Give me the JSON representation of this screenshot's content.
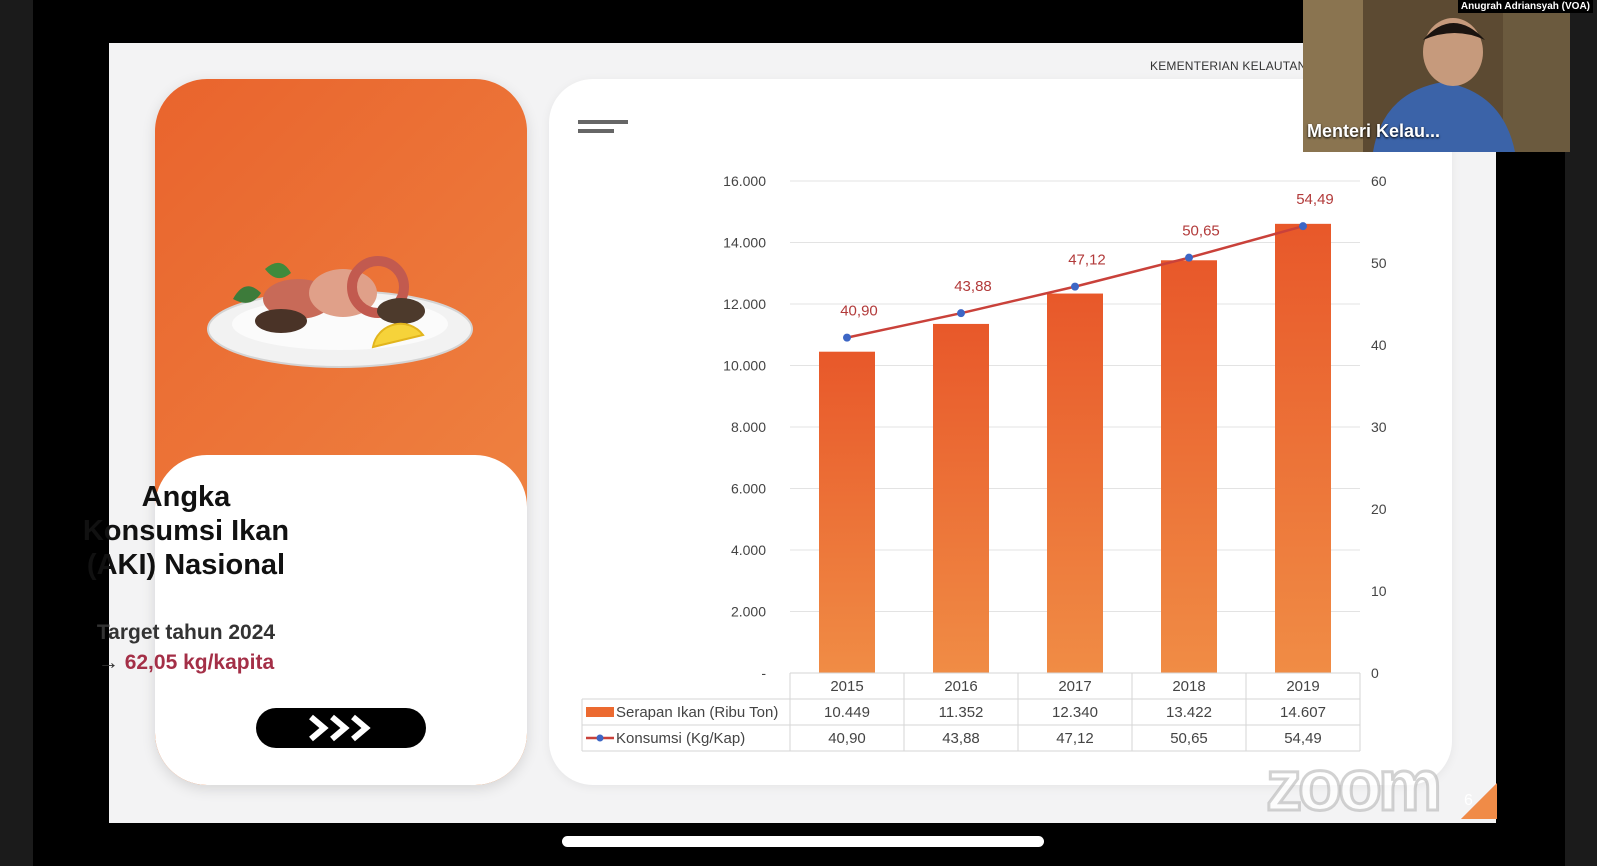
{
  "window": {
    "org_label": "KEMENTERIAN KELAUTAN",
    "credit": "Anugrah Adriansyah (VOA)",
    "participant_name": "Menteri Kelau...",
    "zoom_watermark": "zoom",
    "page_number": "6"
  },
  "left_card": {
    "title_lines": [
      "Angka",
      "Konsumsi Ikan",
      "(AKI) Nasional"
    ],
    "target_label": "Target tahun 2024",
    "target_arrow": "→",
    "target_value": "62,05 kg/kapita",
    "next_icon": "triple-chevron-icon"
  },
  "chart_data": {
    "type": "bar",
    "categories": [
      "2015",
      "2016",
      "2017",
      "2018",
      "2019"
    ],
    "series": [
      {
        "name": "Serapan Ikan (Ribu Ton)",
        "type": "bar",
        "axis": "left",
        "values": [
          10449,
          11352,
          12340,
          13422,
          14607
        ],
        "table_values": [
          "10.449",
          "11.352",
          "12.340",
          "13.422",
          "14.607"
        ],
        "color": "#ec6a30"
      },
      {
        "name": "Konsumsi (Kg/Kap)",
        "type": "line",
        "axis": "right",
        "values": [
          40.9,
          43.88,
          47.12,
          50.65,
          54.49
        ],
        "labels": [
          "40,90",
          "43,88",
          "47,12",
          "50,65",
          "54,49"
        ],
        "line_color": "#c9413a",
        "marker_color": "#3d66c5",
        "label_color": "#b23a3a"
      }
    ],
    "y_left": {
      "min": 0,
      "max": 16000,
      "ticks": [
        {
          "value": 0,
          "label": "-"
        },
        {
          "value": 2000,
          "label": "2.000"
        },
        {
          "value": 4000,
          "label": "4.000"
        },
        {
          "value": 6000,
          "label": "6.000"
        },
        {
          "value": 8000,
          "label": "8.000"
        },
        {
          "value": 10000,
          "label": "10.000"
        },
        {
          "value": 12000,
          "label": "12.000"
        },
        {
          "value": 14000,
          "label": "14.000"
        },
        {
          "value": 16000,
          "label": "16.000"
        }
      ]
    },
    "y_right": {
      "min": 0,
      "max": 60,
      "ticks": [
        {
          "value": 0,
          "label": "0"
        },
        {
          "value": 10,
          "label": "10"
        },
        {
          "value": 20,
          "label": "20"
        },
        {
          "value": 30,
          "label": "30"
        },
        {
          "value": 40,
          "label": "40"
        },
        {
          "value": 50,
          "label": "50"
        },
        {
          "value": 60,
          "label": "60"
        }
      ]
    },
    "grid": true,
    "legend": "data-table-below"
  }
}
